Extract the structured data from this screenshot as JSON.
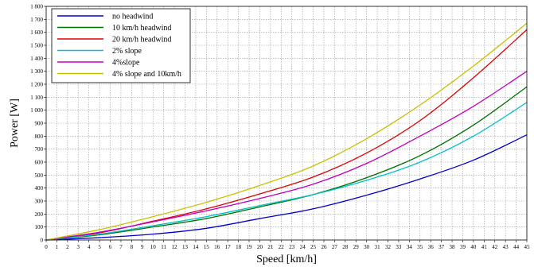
{
  "chart_data": {
    "type": "line",
    "title": "",
    "xlabel": "Speed [km/h]",
    "ylabel": "Power [W]",
    "xlim": [
      0,
      45
    ],
    "ylim": [
      0,
      1800
    ],
    "x_ticks": [
      0,
      1,
      2,
      3,
      4,
      5,
      6,
      7,
      8,
      9,
      10,
      11,
      12,
      13,
      14,
      15,
      16,
      17,
      18,
      19,
      20,
      21,
      22,
      23,
      24,
      25,
      26,
      27,
      28,
      29,
      30,
      31,
      32,
      33,
      34,
      35,
      36,
      37,
      38,
      39,
      40,
      41,
      42,
      43,
      44,
      45
    ],
    "y_ticks": [
      0,
      100,
      200,
      300,
      400,
      500,
      600,
      700,
      800,
      900,
      1000,
      1100,
      1200,
      1300,
      1400,
      1500,
      1600,
      1700,
      1800
    ],
    "y_tick_labels": [
      "0",
      "100",
      "200",
      "300",
      "400",
      "500",
      "600",
      "700",
      "800",
      "900",
      "1 000",
      "1 100",
      "1 200",
      "1 300",
      "1 400",
      "1 500",
      "1 600",
      "1 700",
      "1 800"
    ],
    "grid": true,
    "legend_position": "top-left",
    "x": [
      0,
      5,
      10,
      15,
      20,
      25,
      30,
      35,
      40,
      45
    ],
    "series": [
      {
        "name": "no headwind",
        "color": "#0000cc",
        "values": [
          0,
          18,
          45,
          90,
          165,
          240,
          345,
          470,
          615,
          810
        ]
      },
      {
        "name": "10 km/h headwind",
        "color": "#007000",
        "values": [
          0,
          40,
          100,
          165,
          255,
          350,
          480,
          650,
          885,
          1180
        ]
      },
      {
        "name": "20 km/h headwind",
        "color": "#dd0000",
        "values": [
          0,
          55,
          145,
          240,
          355,
          485,
          670,
          920,
          1250,
          1620
        ]
      },
      {
        "name": "2% slope",
        "color": "#00c0c8",
        "values": [
          0,
          45,
          110,
          180,
          265,
          350,
          460,
          600,
          800,
          1060
        ]
      },
      {
        "name": "4%slope",
        "color": "#c000c0",
        "values": [
          0,
          60,
          140,
          225,
          320,
          430,
          590,
          800,
          1030,
          1300
        ]
      },
      {
        "name": "4% slope and 10km/h",
        "color": "#c8c000",
        "values": [
          0,
          80,
          180,
          290,
          420,
          570,
          780,
          1040,
          1340,
          1670
        ]
      }
    ]
  }
}
